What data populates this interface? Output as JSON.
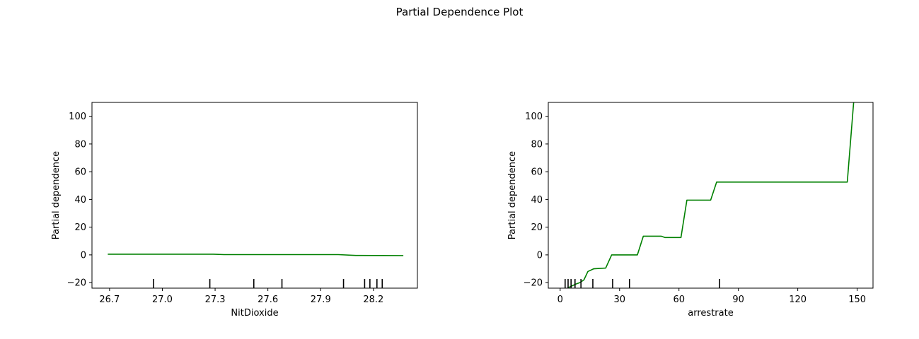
{
  "figure": {
    "title": "Partial Dependence Plot"
  },
  "chart_data": [
    {
      "type": "line",
      "title": "",
      "xlabel": "NitDioxide",
      "ylabel": "Partial dependence",
      "xlim": [
        26.6,
        28.45
      ],
      "ylim": [
        -24,
        110
      ],
      "xticks": [
        26.7,
        27.0,
        27.3,
        27.6,
        27.9,
        28.2
      ],
      "xtick_labels": [
        "26.7",
        "27.0",
        "27.3",
        "27.6",
        "27.9",
        "28.2"
      ],
      "yticks": [
        -20,
        0,
        20,
        40,
        60,
        80,
        100
      ],
      "ytick_labels": [
        "−20",
        "0",
        "20",
        "40",
        "60",
        "80",
        "100"
      ],
      "line_color": "#008000",
      "grid": false,
      "series": [
        {
          "x": [
            26.69,
            27.29,
            27.35,
            28.0,
            28.1,
            28.37
          ],
          "y": [
            0.5,
            0.5,
            0.2,
            0.2,
            -0.4,
            -0.5
          ]
        }
      ],
      "rug": [
        26.95,
        27.27,
        27.52,
        27.68,
        28.03,
        28.15,
        28.18,
        28.22,
        28.25
      ]
    },
    {
      "type": "line",
      "title": "",
      "xlabel": "arrestrate",
      "ylabel": "Partial dependence",
      "xlim": [
        -6,
        158
      ],
      "ylim": [
        -24,
        110
      ],
      "xticks": [
        0,
        30,
        60,
        90,
        120,
        150
      ],
      "xtick_labels": [
        "0",
        "30",
        "60",
        "90",
        "120",
        "150"
      ],
      "yticks": [
        -20,
        0,
        20,
        40,
        60,
        80,
        100
      ],
      "ytick_labels": [
        "−20",
        "0",
        "20",
        "40",
        "60",
        "80",
        "100"
      ],
      "line_color": "#008000",
      "grid": false,
      "series": [
        {
          "x": [
            2.5,
            5,
            8,
            10,
            12,
            14,
            17,
            23,
            26,
            39,
            42,
            51,
            53,
            61,
            64,
            76,
            79,
            145,
            148.5
          ],
          "y": [
            -25,
            -23,
            -21,
            -20,
            -18,
            -12,
            -10,
            -9.5,
            0,
            0,
            13.5,
            13.5,
            12.5,
            12.5,
            39.5,
            39.5,
            52.5,
            52.5,
            115
          ]
        }
      ],
      "rug": [
        2.5,
        4,
        5.5,
        7.5,
        10.5,
        16.5,
        26.5,
        35,
        80.5
      ]
    }
  ]
}
